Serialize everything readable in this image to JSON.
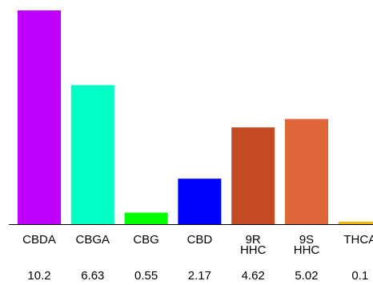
{
  "chart_data": {
    "type": "bar",
    "categories": [
      "CBDA",
      "CBGA",
      "CBG",
      "CBD",
      "9R\nHHC",
      "9S\nHHC",
      "THCA"
    ],
    "values": [
      10.2,
      6.63,
      0.55,
      2.17,
      4.62,
      5.02,
      0.1
    ],
    "value_labels": [
      "10.2",
      "6.63",
      "0.55",
      "2.17",
      "4.62",
      "5.02",
      "0.1"
    ],
    "colors": [
      "#bf00ff",
      "#00ffc4",
      "#00ff00",
      "#0000ff",
      "#c44a22",
      "#df663a",
      "#f5b800"
    ],
    "title": "",
    "xlabel": "",
    "ylabel": "",
    "ylim": [
      0,
      10.2
    ],
    "grid": false,
    "legend": "none"
  }
}
